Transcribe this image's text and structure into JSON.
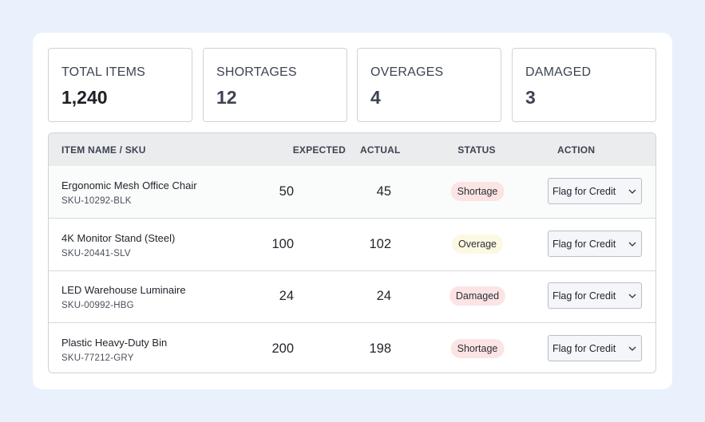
{
  "stats": [
    {
      "label": "TOTAL ITEMS",
      "value": "1,240"
    },
    {
      "label": "SHORTAGES",
      "value": "12"
    },
    {
      "label": "OVERAGES",
      "value": "4"
    },
    {
      "label": "DAMAGED",
      "value": "3"
    }
  ],
  "table": {
    "headers": [
      "ITEM NAME / SKU",
      "EXPECTED",
      "ACTUAL",
      "STATUS",
      "ACTION"
    ],
    "rows": [
      {
        "name": "Ergonomic Mesh Office Chair",
        "sku": "SKU-10292-BLK",
        "expected": 50,
        "actual": 45,
        "status": "Shortage",
        "action": "Flag for Credit"
      },
      {
        "name": "4K Monitor Stand (Steel)",
        "sku": "SKU-20441-SLV",
        "expected": 100,
        "actual": 102,
        "status": "Overage",
        "action": "Flag for Credit"
      },
      {
        "name": "LED Warehouse Luminaire",
        "sku": "SKU-00992-HBG",
        "expected": 24,
        "actual": 24,
        "status": "Damaged",
        "action": "Flag for Credit"
      },
      {
        "name": "Plastic Heavy-Duty Bin",
        "sku": "SKU-77212-GRY",
        "expected": 200,
        "actual": 198,
        "status": "Shortage",
        "action": "Flag for Credit"
      }
    ]
  }
}
